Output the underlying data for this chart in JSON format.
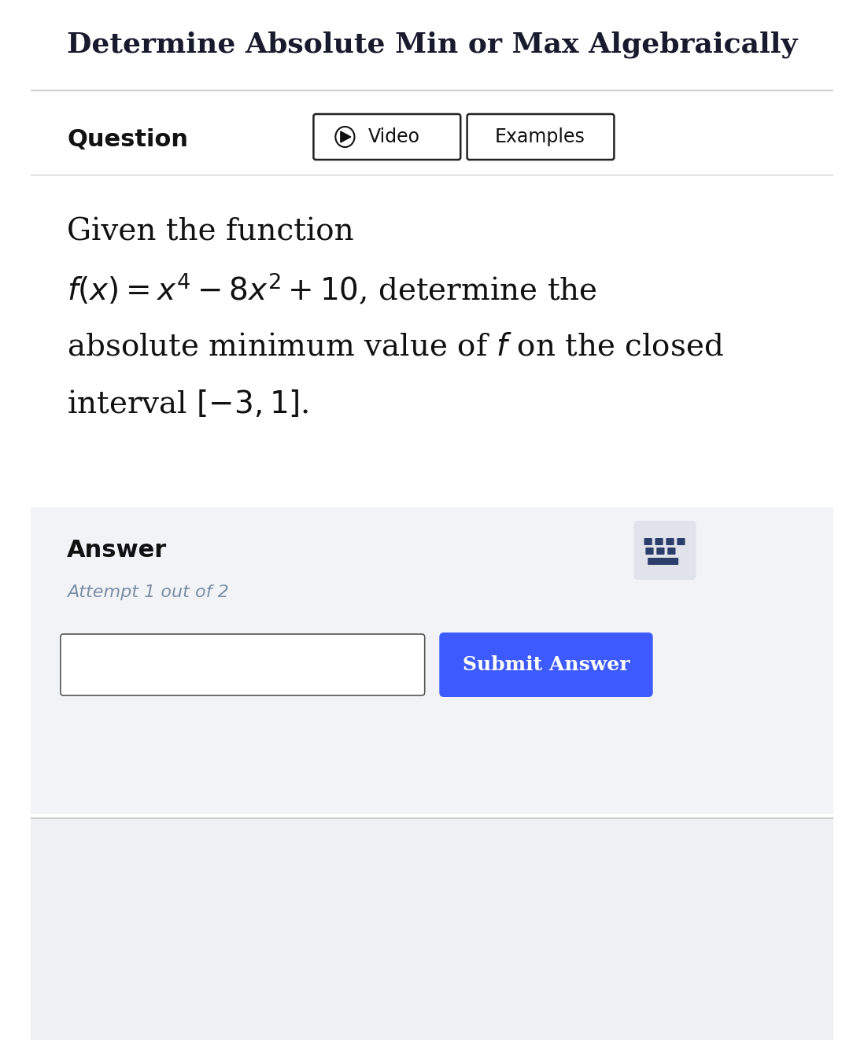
{
  "title": "Determine Absolute Min or Max Algebraically",
  "title_fontsize": 26,
  "title_color": "#1a1a2e",
  "title_bg": "#ffffff",
  "header_separator_color": "#cccccc",
  "question_label": "Question",
  "question_label_fontsize": 22,
  "video_btn_text": "▶ Video",
  "examples_btn_text": "Examples",
  "btn_border_color": "#222222",
  "btn_text_color": "#111111",
  "btn_fontsize": 17,
  "problem_text_line1": "Given the function",
  "problem_formula": "$f(x) = x^4 - 8x^2 + 10$, determine the",
  "problem_text_line3": "absolute minimum value of $f$ on the closed",
  "problem_text_line4": "interval $[-3, 1]$.",
  "problem_fontsize": 28,
  "answer_section_bg": "#f2f3f7",
  "answer_label": "Answer",
  "answer_label_fontsize": 22,
  "answer_label_color": "#111111",
  "attempt_text": "Attempt 1 out of 2",
  "attempt_fontsize": 16,
  "attempt_color": "#7a8fa6",
  "input_box_color": "#ffffff",
  "input_box_border": "#555555",
  "submit_btn_text": "Submit Answer",
  "submit_btn_color": "#3d5afe",
  "submit_btn_text_color": "#ffffff",
  "submit_btn_fontsize": 18,
  "keyboard_icon_bg": "#e0e3ea",
  "keyboard_icon_color": "#2c3e6b",
  "bottom_bg": "#f0f1f5",
  "bg_color": "#ffffff"
}
